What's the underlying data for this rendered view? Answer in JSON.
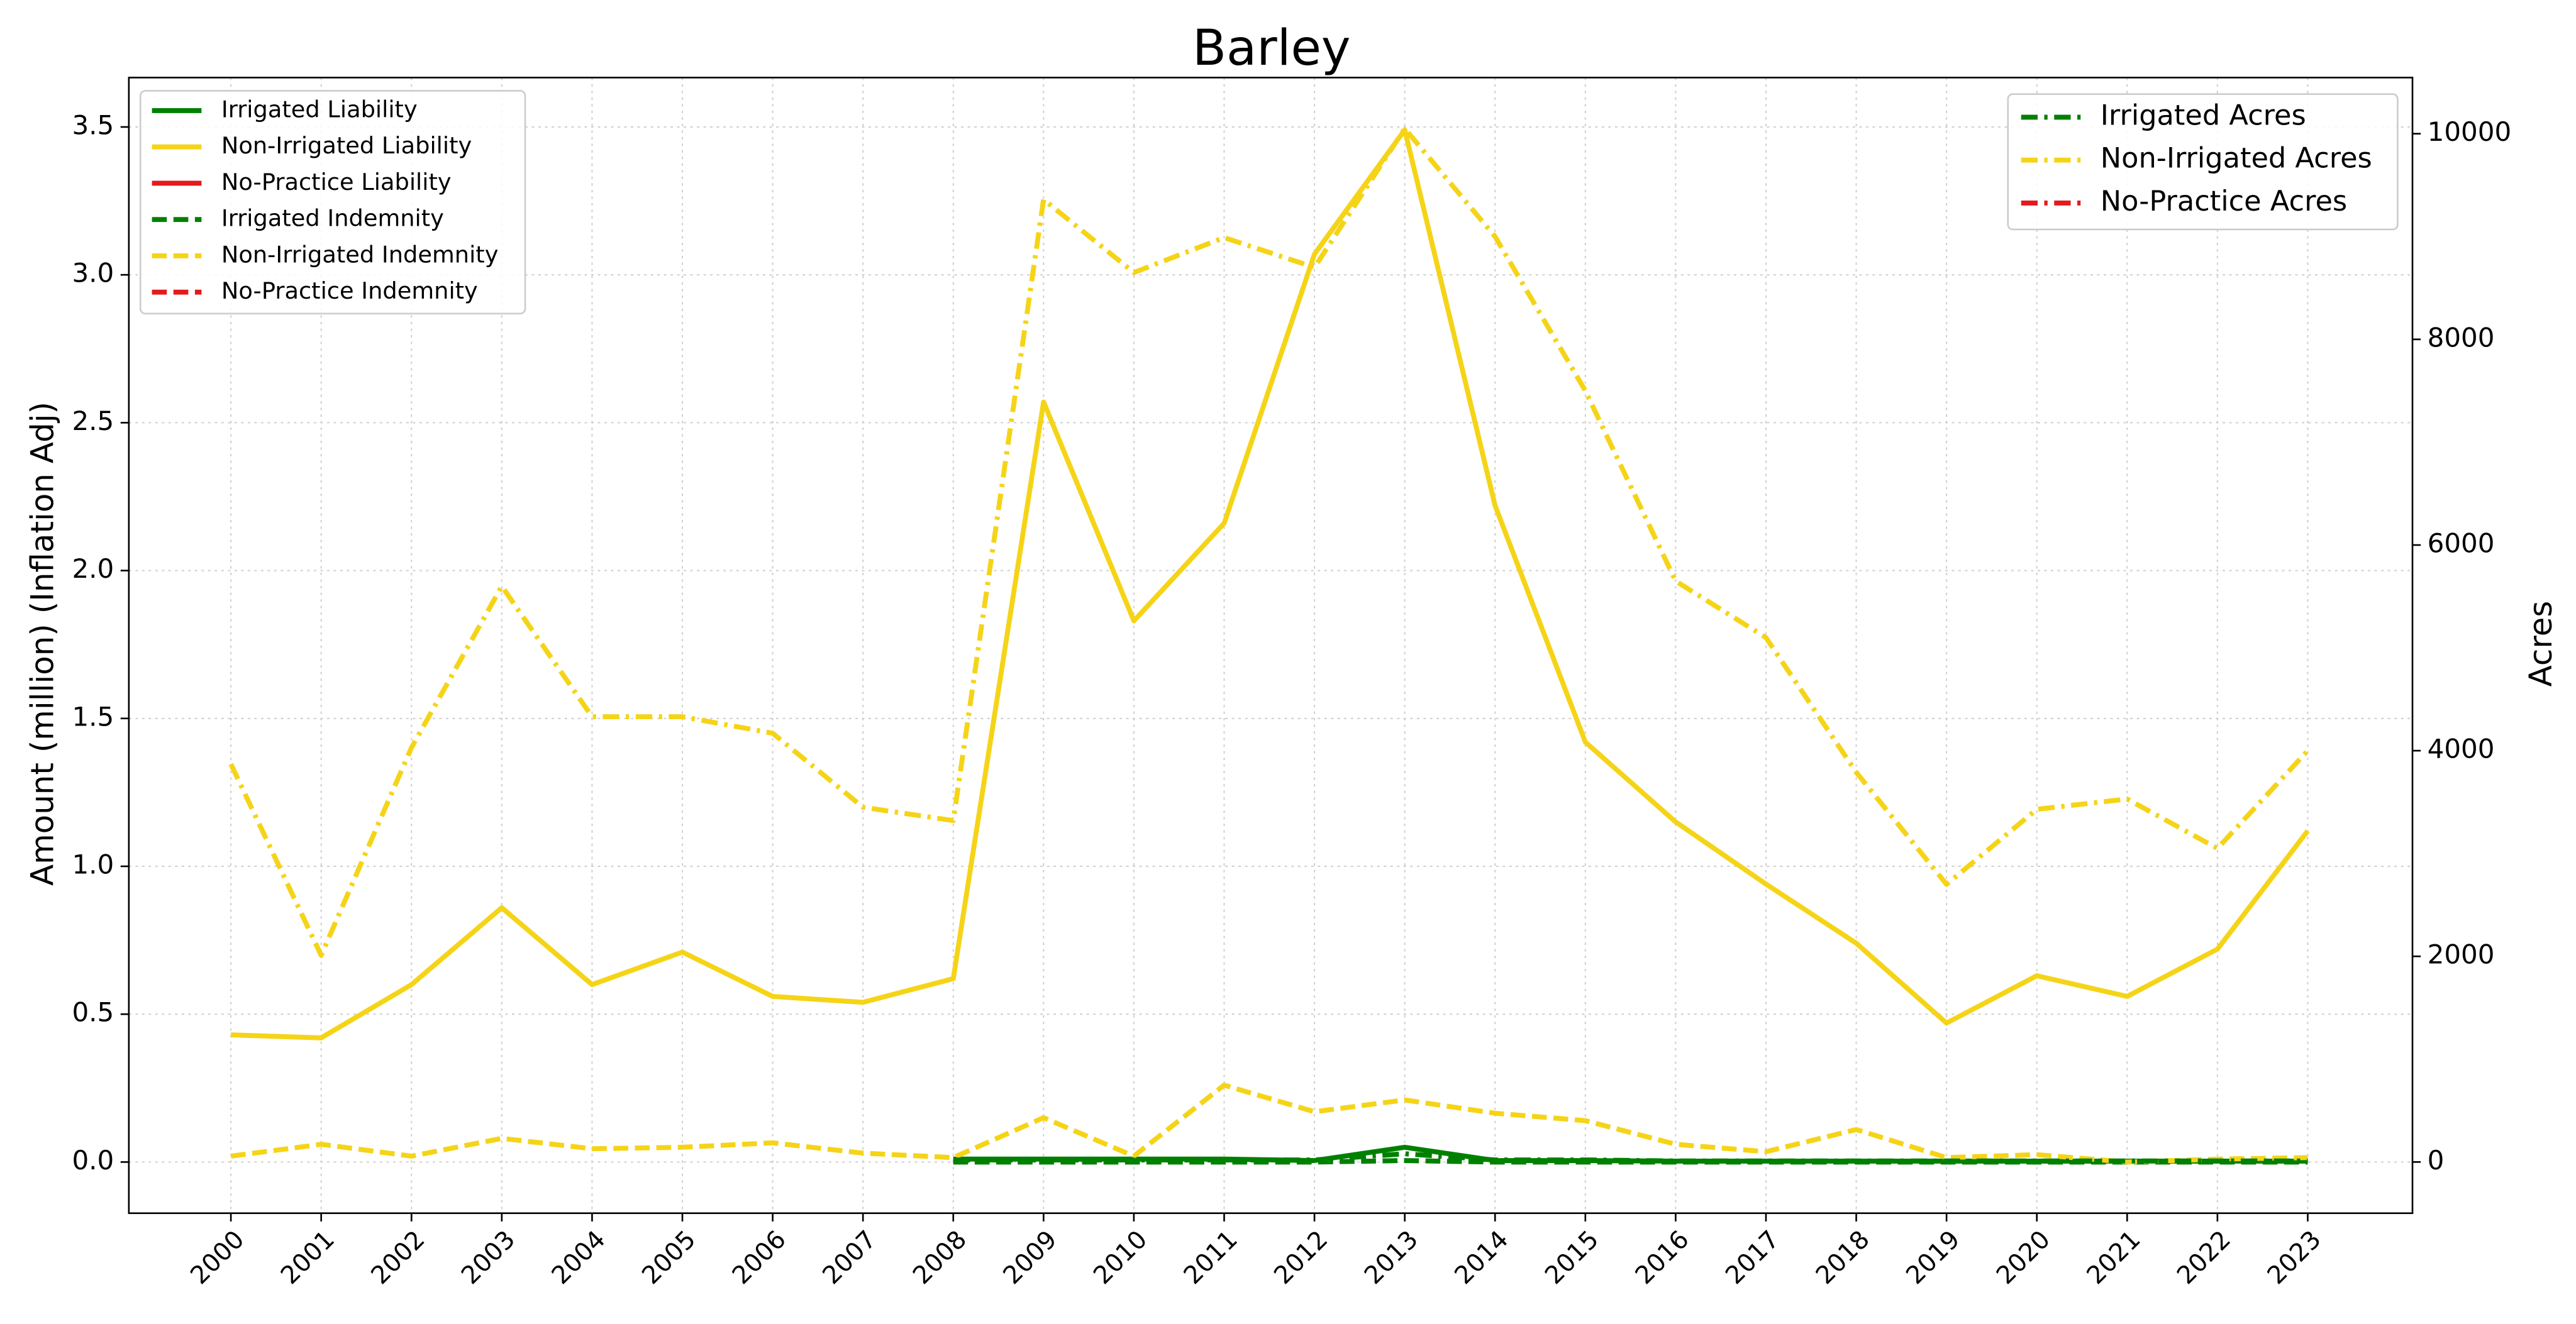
{
  "chart_data": {
    "type": "line",
    "title": "Barley",
    "y_label": "Amount (million) (Inflation Adj)",
    "y2_label": "Acres",
    "x": [
      2000,
      2001,
      2002,
      2003,
      2004,
      2005,
      2006,
      2007,
      2008,
      2009,
      2010,
      2011,
      2012,
      2013,
      2014,
      2015,
      2016,
      2017,
      2018,
      2019,
      2020,
      2021,
      2022,
      2023
    ],
    "xlim": [
      1998.87,
      2024.16
    ],
    "xticks": [
      2000,
      2001,
      2002,
      2003,
      2004,
      2005,
      2006,
      2007,
      2008,
      2009,
      2010,
      2011,
      2012,
      2013,
      2014,
      2015,
      2016,
      2017,
      2018,
      2019,
      2020,
      2021,
      2022,
      2023
    ],
    "ylim": [
      -0.173,
      3.667
    ],
    "yticks": [
      {
        "value": 0,
        "label": "0.0"
      },
      0.5,
      {
        "value": 1,
        "label": "1.0"
      },
      1.5,
      {
        "value": 2,
        "label": "2.0"
      },
      2.5,
      {
        "value": 3,
        "label": "3.0"
      },
      3.5
    ],
    "y2lim": [
      -498,
      10546
    ],
    "y2ticks": [
      0,
      2000,
      4000,
      6000,
      8000,
      10000
    ],
    "grid": true,
    "legend": "upper left",
    "legend2": "upper right",
    "series": [
      {
        "name": "Irrigated Liability",
        "color": "#008000",
        "style": "solid",
        "axis": "y",
        "values": [
          null,
          null,
          null,
          null,
          null,
          null,
          null,
          null,
          0.01,
          0.01,
          0.01,
          0.01,
          0.005,
          0.05,
          0.005,
          0.005,
          0.003,
          0.003,
          0.003,
          0.003,
          0.003,
          0.003,
          0.003,
          0.003
        ]
      },
      {
        "name": "Non-Irrigated Liability",
        "color": "#f5d418",
        "style": "solid",
        "axis": "y",
        "values": [
          0.43,
          0.42,
          0.6,
          0.86,
          0.6,
          0.71,
          0.56,
          0.54,
          0.62,
          2.57,
          1.83,
          2.16,
          3.07,
          3.49,
          2.22,
          1.42,
          1.15,
          0.94,
          0.74,
          0.47,
          0.63,
          0.56,
          0.72,
          1.12
        ]
      },
      {
        "name": "No-Practice Liability",
        "color": "#e41a1c",
        "style": "solid",
        "axis": "y",
        "values": [
          null,
          null,
          null,
          null,
          null,
          null,
          null,
          null,
          null,
          null,
          null,
          null,
          null,
          null,
          null,
          null,
          null,
          null,
          null,
          null,
          null,
          null,
          null,
          null
        ]
      },
      {
        "name": "Irrigated Indemnity",
        "color": "#008000",
        "style": "dashed",
        "axis": "y",
        "values": [
          null,
          null,
          null,
          null,
          null,
          null,
          null,
          null,
          0,
          0,
          0,
          0,
          0,
          0.005,
          0,
          0,
          0,
          0,
          0,
          0,
          0,
          0,
          0,
          0
        ]
      },
      {
        "name": "Non-Irrigated Indemnity",
        "color": "#f5d418",
        "style": "dashed",
        "axis": "y",
        "values": [
          0.02,
          0.06,
          0.02,
          0.08,
          0.045,
          0.05,
          0.065,
          0.03,
          0.015,
          0.15,
          0.02,
          0.26,
          0.17,
          0.21,
          0.165,
          0.14,
          0.06,
          0.035,
          0.11,
          0.015,
          0.025,
          0,
          0.01,
          0.015
        ]
      },
      {
        "name": "No-Practice Indemnity",
        "color": "#e41a1c",
        "style": "dashed",
        "axis": "y",
        "values": [
          null,
          null,
          null,
          null,
          null,
          null,
          null,
          null,
          null,
          null,
          null,
          null,
          null,
          null,
          null,
          null,
          null,
          null,
          null,
          null,
          null,
          null,
          null,
          null
        ]
      },
      {
        "name": "Irrigated Acres",
        "color": "#008000",
        "style": "dashdot",
        "axis": "y2",
        "values": [
          null,
          null,
          null,
          null,
          null,
          null,
          null,
          null,
          20,
          20,
          20,
          20,
          20,
          80,
          20,
          20,
          10,
          10,
          10,
          10,
          10,
          10,
          10,
          10
        ]
      },
      {
        "name": "Non-Irrigated Acres",
        "color": "#f5d418",
        "style": "dashdot",
        "axis": "y2",
        "values": [
          3870,
          2010,
          4030,
          5600,
          4330,
          4330,
          4170,
          3450,
          3320,
          9360,
          8650,
          8990,
          8700,
          10050,
          9000,
          7500,
          5650,
          5100,
          3790,
          2700,
          3430,
          3530,
          3050,
          4000
        ]
      },
      {
        "name": "No-Practice Acres",
        "color": "#e41a1c",
        "style": "dashdot",
        "axis": "y2",
        "values": [
          null,
          null,
          null,
          null,
          null,
          null,
          null,
          null,
          null,
          null,
          null,
          null,
          null,
          null,
          null,
          null,
          null,
          null,
          null,
          null,
          null,
          null,
          null,
          null
        ]
      }
    ]
  }
}
